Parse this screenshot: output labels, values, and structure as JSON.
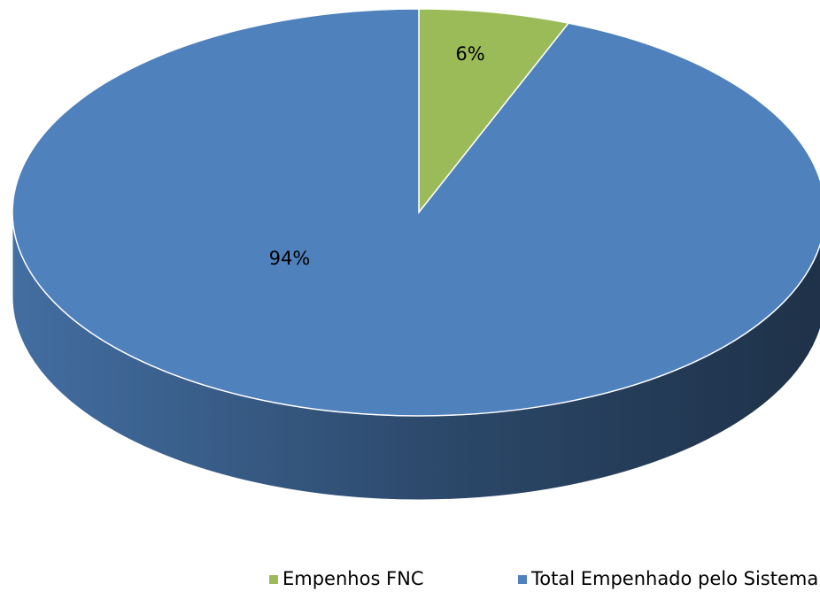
{
  "chart_data": {
    "type": "pie3d",
    "categories": [
      "Empenhos FNC",
      "Total Empenhado pelo Sistema MinC"
    ],
    "values": [
      6,
      94
    ],
    "value_labels": [
      "6%",
      "94%"
    ],
    "colors": [
      "#9bbb59",
      "#4f81bd"
    ],
    "legend": "bottom"
  }
}
